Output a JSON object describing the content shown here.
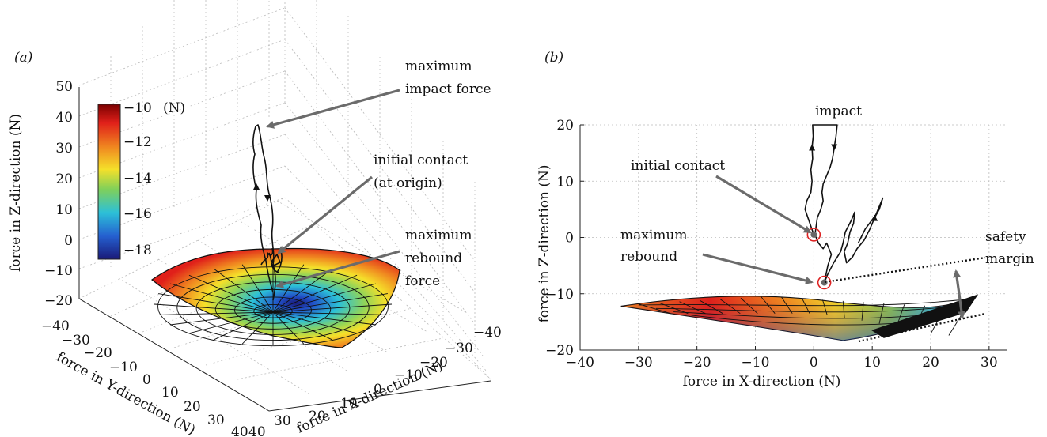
{
  "chart_data": [
    {
      "panel": "(a)",
      "type": "surface3d",
      "xlabel": "force in X-direction (N)",
      "ylabel": "force in Y-direction (N)",
      "zlabel": "force in Z-direction (N)",
      "x_ticks": [
        "−40",
        "−30",
        "−20",
        "−10",
        "0",
        "10",
        "20",
        "30",
        "40"
      ],
      "y_ticks": [
        "−40",
        "−30",
        "−20",
        "−10",
        "0",
        "10",
        "20",
        "30",
        "40"
      ],
      "z_ticks": [
        "50",
        "40",
        "30",
        "20",
        "10",
        "0",
        "−10",
        "−20"
      ],
      "colorbar": {
        "ticks": [
          "−10",
          "−12",
          "−14",
          "−16",
          "−18"
        ],
        "unit": "(N)",
        "range": [
          -18.5,
          -10
        ]
      },
      "annotations": [
        "maximum",
        "impact force",
        "initial contact",
        "(at origin)",
        "maximum",
        "rebound",
        "force"
      ]
    },
    {
      "panel": "(b)",
      "type": "line",
      "xlabel": "force in X-direction (N)",
      "ylabel": "force in Z-direction (N)",
      "xlim": [
        -40,
        33
      ],
      "ylim": [
        -20,
        20
      ],
      "x_ticks": [
        "−40",
        "−30",
        "−20",
        "−10",
        "0",
        "10",
        "20",
        "30"
      ],
      "y_ticks": [
        "20",
        "10",
        "0",
        "−10",
        "−20"
      ],
      "annotations": [
        "impact",
        "initial contact",
        "maximum",
        "rebound",
        "safety",
        "margin"
      ],
      "markers": [
        {
          "name": "initial contact",
          "x": 0,
          "z": 0.5
        },
        {
          "name": "maximum rebound",
          "x": 1.8,
          "z": -8
        }
      ],
      "trajectory": [
        [
          0.0,
          0.5
        ],
        [
          -0.5,
          2
        ],
        [
          -1,
          3.5
        ],
        [
          -1.5,
          5
        ],
        [
          -1.2,
          6.5
        ],
        [
          -0.5,
          8
        ],
        [
          -0.3,
          10
        ],
        [
          -0.5,
          12
        ],
        [
          -0.2,
          14
        ],
        [
          -0.3,
          16
        ],
        [
          -0.1,
          18
        ],
        [
          -0.2,
          20
        ],
        [
          4,
          20
        ],
        [
          3.8,
          18
        ],
        [
          3.5,
          16
        ],
        [
          3.2,
          14
        ],
        [
          2.8,
          12.5
        ],
        [
          2.2,
          11
        ],
        [
          1.6,
          9.5
        ],
        [
          1.4,
          8
        ],
        [
          1.6,
          6.5
        ],
        [
          1.2,
          5
        ],
        [
          0.6,
          3.5
        ],
        [
          0.4,
          2
        ],
        [
          0.2,
          0.5
        ],
        [
          0.8,
          -1
        ],
        [
          1.6,
          -2
        ],
        [
          2.2,
          -1
        ],
        [
          3,
          -3
        ],
        [
          2.4,
          -5
        ],
        [
          2.0,
          -7
        ],
        [
          1.8,
          -8
        ],
        [
          2.4,
          -6.5
        ],
        [
          3.4,
          -4.5
        ],
        [
          4.6,
          -2.5
        ],
        [
          5,
          -1
        ],
        [
          5.4,
          1
        ],
        [
          6.4,
          3
        ],
        [
          7,
          4.5
        ],
        [
          6.8,
          2.5
        ],
        [
          6.2,
          1
        ],
        [
          5.8,
          -1
        ],
        [
          5.2,
          -2.5
        ],
        [
          5.6,
          -4.5
        ],
        [
          6.6,
          -3.5
        ],
        [
          7.4,
          -2
        ],
        [
          8.6,
          -0.5
        ],
        [
          9.6,
          1.5
        ],
        [
          10.4,
          3.5
        ],
        [
          11.2,
          5
        ],
        [
          11.8,
          7
        ],
        [
          10.6,
          4
        ],
        [
          8.8,
          1.5
        ],
        [
          7.6,
          -1
        ]
      ],
      "surface": {
        "x_range": [
          -33,
          28
        ],
        "z_top": -10,
        "z_bottom": -18
      }
    }
  ]
}
